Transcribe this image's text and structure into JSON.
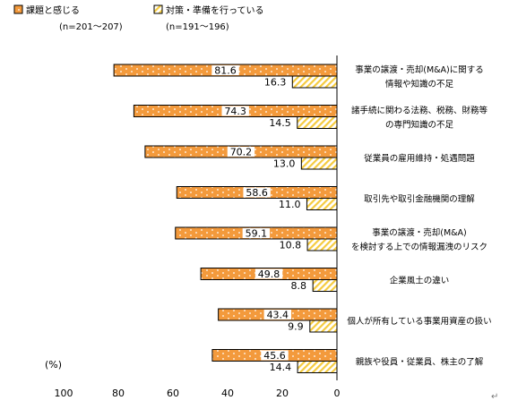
{
  "legend": {
    "series1_label": "課題と感じる",
    "series1_n": "(n=201～207)",
    "series2_label": "対策・準備を行っている",
    "series2_n": "(n=191～196)"
  },
  "chart_data": {
    "type": "bar",
    "orientation": "horizontal",
    "x_reversed": true,
    "unit_label": "(%)",
    "xlim": [
      0,
      100
    ],
    "xticks": [
      100,
      80,
      60,
      40,
      20,
      0
    ],
    "categories": [
      [
        "事業の譲渡・売却(M&A)に関する",
        "情報や知識の不足"
      ],
      [
        "諸手続に関わる法務、税務、財務等",
        "の専門知識の不足"
      ],
      [
        "従業員の雇用維持・処遇問題"
      ],
      [
        "取引先や取引金融機関の理解"
      ],
      [
        "事業の譲渡・売却(M&A)",
        "を検討する上での情報漏洩のリスク"
      ],
      [
        "企業風土の違い"
      ],
      [
        "個人が所有している事業用資産の扱い"
      ],
      [
        "親族や役員・従業員、株主の了解"
      ]
    ],
    "series": [
      {
        "name": "課題と感じる",
        "values": [
          81.6,
          74.3,
          70.2,
          58.6,
          59.1,
          49.8,
          43.4,
          45.6
        ],
        "color": "#F39A3C"
      },
      {
        "name": "対策・準備を行っている",
        "values": [
          16.3,
          14.5,
          13.0,
          11.0,
          10.8,
          8.8,
          9.9,
          14.4
        ],
        "color": "#F7DC66"
      }
    ],
    "value_labels": [
      [
        "81.6",
        "74.3",
        "70.2",
        "58.6",
        "59.1",
        "49.8",
        "43.4",
        "45.6"
      ],
      [
        "16.3",
        "14.5",
        "13.0",
        "11.0",
        "10.8",
        "8.8",
        "9.9",
        "14.4"
      ]
    ]
  },
  "trailing_mark": "↵"
}
